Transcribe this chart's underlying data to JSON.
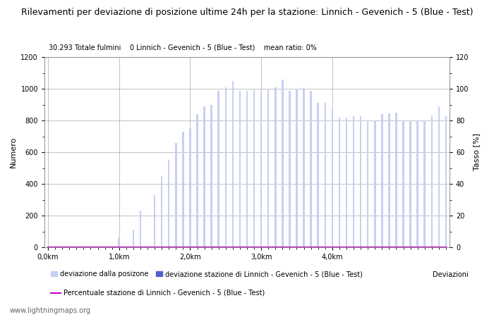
{
  "title": "Rilevamenti per deviazione di posizione ultime 24h per la stazione: Linnich - Gevenich - 5 (Blue - Test)",
  "subtitle": "30.293 Totale fulmini    0 Linnich - Gevenich - 5 (Blue - Test)    mean ratio: 0%",
  "ylabel_left": "Numero",
  "ylabel_right": "Tasso [%]",
  "watermark": "www.lightningmaps.org",
  "ylim_left": [
    0,
    1200
  ],
  "ylim_right": [
    0,
    120
  ],
  "yticks_left": [
    0,
    200,
    400,
    600,
    800,
    1000,
    1200
  ],
  "yticks_right": [
    0,
    20,
    40,
    60,
    80,
    100,
    120
  ],
  "xtick_labels": [
    "0,0km",
    "1,0km",
    "2,0km",
    "3,0km",
    "4,0km"
  ],
  "xtick_positions": [
    0,
    10,
    20,
    30,
    40
  ],
  "bar_color_light": "#c8cff5",
  "bar_color_dark": "#5560cc",
  "bar_values": [
    0,
    0,
    0,
    0,
    1,
    0,
    1,
    0,
    1,
    1,
    60,
    0,
    110,
    230,
    2,
    330,
    450,
    550,
    660,
    730,
    750,
    840,
    890,
    900,
    985,
    1010,
    1050,
    985,
    985,
    990,
    985,
    1000,
    1010,
    1060,
    985,
    1000,
    1005,
    985,
    910,
    910,
    870,
    820,
    820,
    825,
    825,
    800,
    800,
    840,
    845,
    850,
    800,
    800,
    800,
    800,
    830,
    890,
    825
  ],
  "bar_values2": [
    0,
    0,
    0,
    0,
    0,
    0,
    0,
    0,
    0,
    0,
    0,
    0,
    0,
    0,
    0,
    0,
    0,
    0,
    0,
    0,
    0,
    0,
    0,
    0,
    0,
    0,
    0,
    0,
    0,
    0,
    0,
    0,
    0,
    0,
    0,
    0,
    0,
    0,
    0,
    0,
    0,
    0,
    0,
    0,
    0,
    0,
    0,
    0,
    0,
    0,
    0,
    0,
    0,
    0,
    0,
    0,
    0
  ],
  "legend_label_light": "deviazione dalla posizone",
  "legend_label_dark": "deviazione stazione di Linnich - Gevenich - 5 (Blue - Test)",
  "legend_label_line": "Percentuale stazione di Linnich - Gevenich - 5 (Blue - Test)",
  "line_color": "#cc00cc",
  "background_color": "#ffffff",
  "grid_color": "#aaaaaa",
  "minor_tick_color": "#cccccc"
}
